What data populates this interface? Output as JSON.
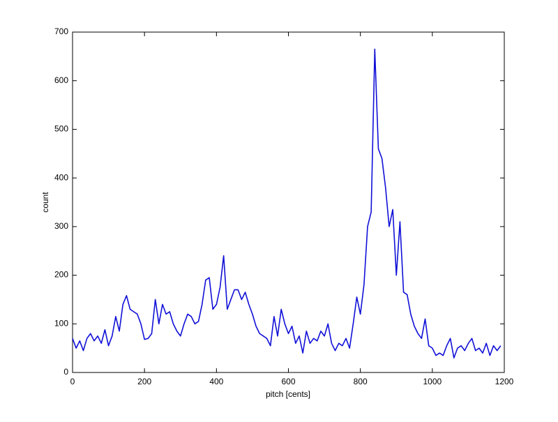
{
  "chart_data": {
    "type": "line",
    "xlabel": "pitch [cents]",
    "ylabel": "count",
    "x": [
      0,
      10,
      20,
      30,
      40,
      50,
      60,
      70,
      80,
      90,
      100,
      110,
      120,
      130,
      140,
      150,
      160,
      170,
      180,
      190,
      200,
      210,
      220,
      230,
      240,
      250,
      260,
      270,
      280,
      290,
      300,
      310,
      320,
      330,
      340,
      350,
      360,
      370,
      380,
      390,
      400,
      410,
      420,
      430,
      440,
      450,
      460,
      470,
      480,
      490,
      500,
      510,
      520,
      530,
      540,
      550,
      560,
      570,
      580,
      590,
      600,
      610,
      620,
      630,
      640,
      650,
      660,
      670,
      680,
      690,
      700,
      710,
      720,
      730,
      740,
      750,
      760,
      770,
      780,
      790,
      800,
      810,
      820,
      830,
      840,
      850,
      860,
      870,
      880,
      890,
      900,
      910,
      920,
      930,
      940,
      950,
      960,
      970,
      980,
      990,
      1000,
      1010,
      1020,
      1030,
      1040,
      1050,
      1060,
      1070,
      1080,
      1090,
      1100,
      1110,
      1120,
      1130,
      1140,
      1150,
      1160,
      1170,
      1180,
      1190
    ],
    "series": [
      {
        "name": "count",
        "color": "#1010d8",
        "values": [
          70,
          50,
          65,
          45,
          70,
          80,
          65,
          75,
          60,
          88,
          55,
          75,
          115,
          85,
          140,
          158,
          130,
          125,
          120,
          100,
          68,
          70,
          80,
          150,
          100,
          140,
          120,
          125,
          100,
          85,
          75,
          100,
          120,
          115,
          100,
          105,
          140,
          190,
          195,
          130,
          140,
          175,
          240,
          130,
          150,
          170,
          170,
          150,
          165,
          140,
          120,
          95,
          80,
          75,
          70,
          55,
          115,
          75,
          130,
          100,
          80,
          95,
          60,
          75,
          40,
          85,
          60,
          70,
          65,
          85,
          75,
          100,
          60,
          45,
          60,
          55,
          70,
          50,
          100,
          155,
          120,
          180,
          300,
          330,
          665,
          460,
          440,
          380,
          300,
          335,
          200,
          310,
          165,
          160,
          120,
          95,
          80,
          70,
          110,
          55,
          50,
          35,
          40,
          35,
          55,
          70,
          30,
          50,
          55,
          45,
          60,
          70,
          45,
          50,
          40,
          60,
          35,
          55,
          45,
          55
        ]
      }
    ],
    "xlim": [
      0,
      1200
    ],
    "xticks": [
      0,
      200,
      400,
      600,
      800,
      1000,
      1200
    ],
    "ylim": [
      0,
      700
    ],
    "yticks": [
      0,
      100,
      200,
      300,
      400,
      500,
      600,
      700
    ],
    "grid": false
  }
}
